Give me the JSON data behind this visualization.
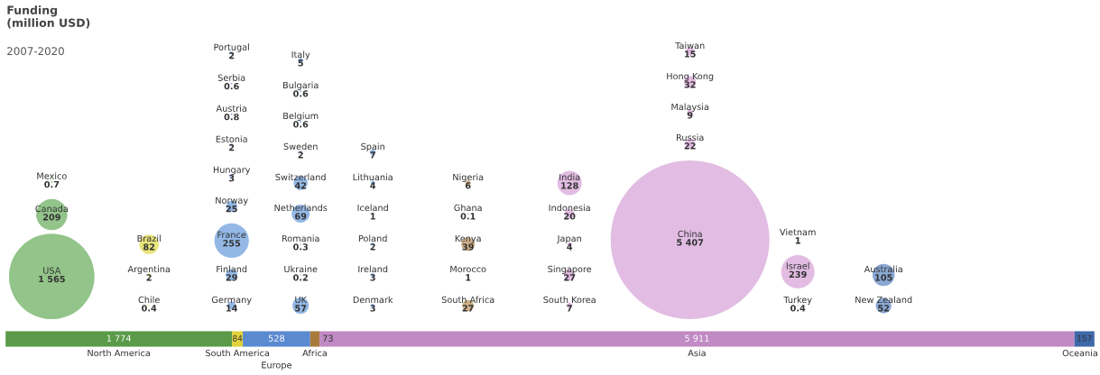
{
  "chart_data": [
    {
      "type": "other",
      "title": "Funding\n(million USD)",
      "subtitle": "2007-2020",
      "categories": [
        "USA",
        "Canada",
        "Mexico",
        "Chile",
        "Argentina",
        "Brazil",
        "Germany",
        "Finland",
        "France",
        "Norway",
        "Hungary",
        "Estonia",
        "Austria",
        "Serbia",
        "Portugal",
        "UK",
        "Ukraine",
        "Romania",
        "Netherlands",
        "Switzerland",
        "Sweden",
        "Belgium",
        "Bulgaria",
        "Italy",
        "Denmark",
        "Ireland",
        "Poland",
        "Iceland",
        "Lithuania",
        "Spain",
        "South Africa",
        "Morocco",
        "Kenya",
        "Ghana",
        "Nigeria",
        "South Korea",
        "Singapore",
        "Japan",
        "Indonesia",
        "India",
        "China",
        "Russia",
        "Malaysia",
        "Hong Kong",
        "Taiwan",
        "Turkey",
        "Israel",
        "Vietnam",
        "New Zealand",
        "Australia"
      ],
      "values": [
        1565,
        209,
        0.7,
        0.4,
        2,
        82,
        14,
        29,
        255,
        25,
        3,
        2,
        0.8,
        0.6,
        2,
        57,
        0.2,
        0.3,
        69,
        42,
        2,
        0.6,
        0.6,
        5,
        3,
        3,
        2,
        1,
        4,
        7,
        27,
        1,
        39,
        0.1,
        6,
        7,
        27,
        4,
        20,
        128,
        5407,
        22,
        9,
        32,
        15,
        0.4,
        239,
        1,
        52,
        105
      ],
      "value_labels": [
        "1 565",
        "209",
        "0.7",
        "0.4",
        "2",
        "82",
        "14",
        "29",
        "255",
        "25",
        "3",
        "2",
        "0.8",
        "0.6",
        "2",
        "57",
        "0.2",
        "0.3",
        "69",
        "42",
        "2",
        "0.6",
        "0.6",
        "5",
        "3",
        "3",
        "2",
        "1",
        "4",
        "7",
        "27",
        "1",
        "39",
        "0.1",
        "6",
        "7",
        "27",
        "4",
        "20",
        "128",
        "5 407",
        "22",
        "9",
        "32",
        "15",
        "0.4",
        "239",
        "1",
        "52",
        "105"
      ],
      "colors": [
        "#93c48a",
        "#93c48a",
        "#93c48a",
        "#e8e47c",
        "#e8e47c",
        "#e8e47c",
        "#93b8e6",
        "#93b8e6",
        "#93b8e6",
        "#93b8e6",
        "#93b8e6",
        "#93b8e6",
        "#93b8e6",
        "#93b8e6",
        "#93b8e6",
        "#93b8e6",
        "#93b8e6",
        "#93b8e6",
        "#93b8e6",
        "#93b8e6",
        "#93b8e6",
        "#93b8e6",
        "#93b8e6",
        "#93b8e6",
        "#93b8e6",
        "#93b8e6",
        "#93b8e6",
        "#93b8e6",
        "#93b8e6",
        "#93b8e6",
        "#cfb088",
        "#cfb088",
        "#cfb088",
        "#cfb088",
        "#cfb088",
        "#e2bce2",
        "#e2bce2",
        "#e2bce2",
        "#e2bce2",
        "#e2bce2",
        "#e2bce2",
        "#e2bce2",
        "#e2bce2",
        "#e2bce2",
        "#e2bce2",
        "#e2bce2",
        "#e2bce2",
        "#e2bce2",
        "#8aa8d4",
        "#8aa8d4"
      ]
    },
    {
      "type": "bar",
      "orientation": "horizontal",
      "stacked": true,
      "categories": [
        null
      ],
      "series": [
        {
          "name": "North America",
          "color": "#5a9a48",
          "values": [
            1774
          ],
          "value_labels": [
            "1 774"
          ]
        },
        {
          "name": "South America",
          "color": "#e2d23c",
          "values": [
            84
          ],
          "value_labels": [
            "84"
          ]
        },
        {
          "name": "Europe",
          "color": "#5a8ad0",
          "values": [
            528
          ],
          "value_labels": [
            "528"
          ]
        },
        {
          "name": "Africa",
          "color": "#a87a3c",
          "values": [
            73
          ],
          "value_labels": [
            "73"
          ]
        },
        {
          "name": "Asia",
          "color": "#c08ac4",
          "values": [
            5911
          ],
          "value_labels": [
            "5 911"
          ]
        },
        {
          "name": "Oceania",
          "color": "#3f68a8",
          "values": [
            157
          ],
          "value_labels": [
            "157"
          ]
        }
      ]
    }
  ]
}
